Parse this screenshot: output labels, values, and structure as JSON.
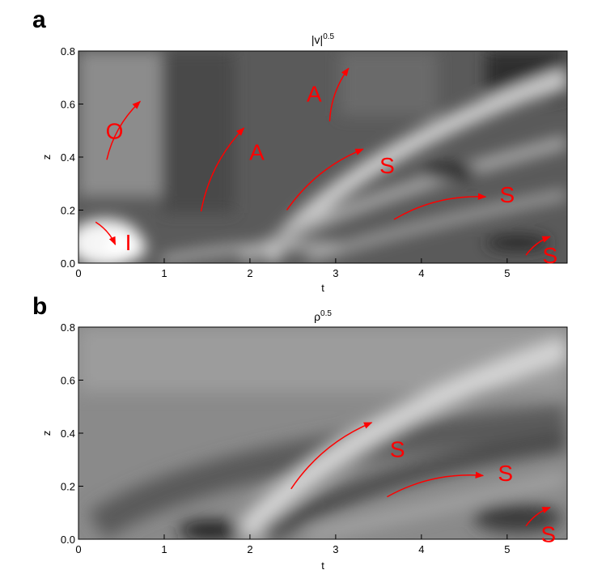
{
  "chart_data": [
    {
      "type": "heatmap",
      "panel": "a",
      "title_base": "|v|",
      "title_exp": "0.5",
      "xlabel": "t",
      "ylabel": "z",
      "xlim": [
        0,
        5.7
      ],
      "ylim": [
        0,
        0.8
      ],
      "xticks": [
        0,
        1,
        2,
        3,
        4,
        5
      ],
      "yticks": [
        0.0,
        0.2,
        0.4,
        0.6,
        0.8
      ],
      "colormap": "grayscale",
      "annotations": [
        {
          "text": "O",
          "x": 0.42,
          "y": 0.5,
          "arrow": [
            [
              0.33,
              0.39
            ],
            [
              0.72,
              0.61
            ]
          ]
        },
        {
          "text": "I",
          "x": 0.58,
          "y": 0.08,
          "arrow": [
            [
              0.2,
              0.155
            ],
            [
              0.43,
              0.07
            ]
          ]
        },
        {
          "text": "A",
          "x": 2.08,
          "y": 0.42,
          "arrow": [
            [
              1.43,
              0.195
            ],
            [
              1.93,
              0.51
            ]
          ]
        },
        {
          "text": "A",
          "x": 2.75,
          "y": 0.64,
          "arrow": [
            [
              2.93,
              0.535
            ],
            [
              3.15,
              0.735
            ]
          ]
        },
        {
          "text": "S",
          "x": 3.6,
          "y": 0.37,
          "arrow": [
            [
              2.43,
              0.2
            ],
            [
              3.32,
              0.43
            ]
          ]
        },
        {
          "text": "S",
          "x": 5.0,
          "y": 0.26,
          "arrow": [
            [
              3.68,
              0.165
            ],
            [
              4.75,
              0.25
            ]
          ]
        },
        {
          "text": "S",
          "x": 5.5,
          "y": 0.03,
          "arrow": [
            [
              5.22,
              0.03
            ],
            [
              5.5,
              0.1
            ]
          ]
        }
      ]
    },
    {
      "type": "heatmap",
      "panel": "b",
      "title_base": "ρ",
      "title_exp": "0.5",
      "xlabel": "t",
      "ylabel": "z",
      "xlim": [
        0,
        5.7
      ],
      "ylim": [
        0,
        0.8
      ],
      "xticks": [
        0,
        1,
        2,
        3,
        4,
        5
      ],
      "yticks": [
        0.0,
        0.2,
        0.4,
        0.6,
        0.8
      ],
      "colormap": "grayscale",
      "annotations": [
        {
          "text": "S",
          "x": 3.72,
          "y": 0.34,
          "arrow": [
            [
              2.48,
              0.19
            ],
            [
              3.42,
              0.44
            ]
          ]
        },
        {
          "text": "S",
          "x": 4.98,
          "y": 0.25,
          "arrow": [
            [
              3.6,
              0.16
            ],
            [
              4.72,
              0.24
            ]
          ]
        },
        {
          "text": "S",
          "x": 5.48,
          "y": 0.02,
          "arrow": [
            [
              5.22,
              0.05
            ],
            [
              5.5,
              0.12
            ]
          ]
        }
      ]
    }
  ],
  "panel_letters": [
    "a",
    "b"
  ],
  "colors": {
    "annotation": "#ff0000",
    "axis": "#000000"
  }
}
